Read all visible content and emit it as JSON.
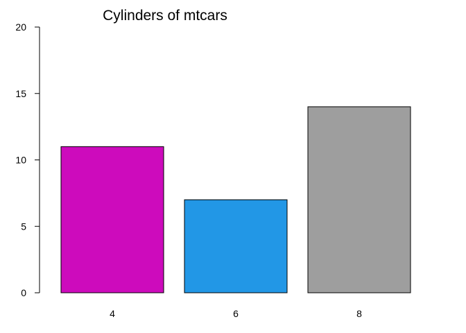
{
  "chart_data": {
    "type": "bar",
    "title": "Cylinders of mtcars",
    "xlabel": "",
    "ylabel": "",
    "categories": [
      "4",
      "6",
      "8"
    ],
    "values": [
      11,
      7,
      14
    ],
    "colors": [
      "#CD0BBC",
      "#2297E6",
      "#9E9E9E"
    ],
    "ylim": [
      0,
      20
    ],
    "yticks": [
      0,
      5,
      10,
      15,
      20
    ],
    "grid": false,
    "legend": "none"
  }
}
